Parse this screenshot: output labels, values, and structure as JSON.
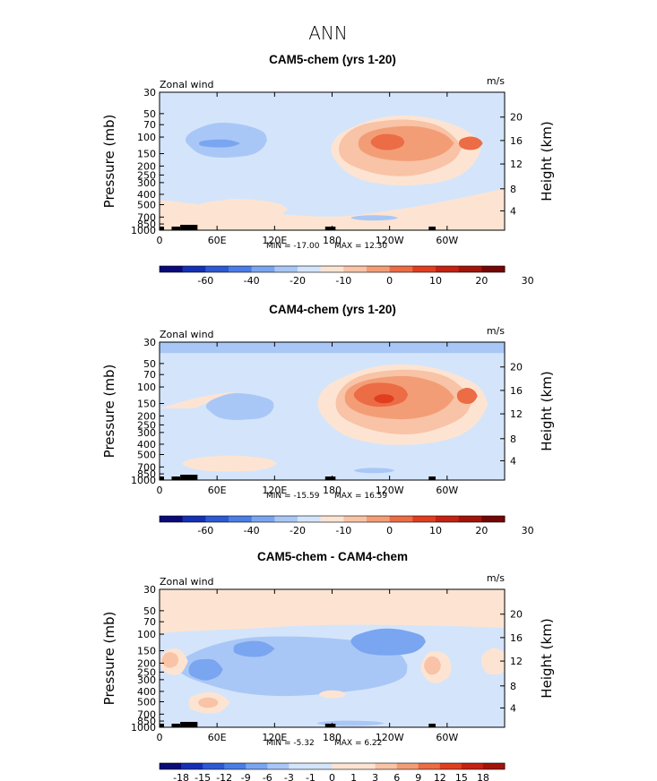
{
  "page_title": "ANN",
  "chart_data": [
    {
      "type": "heatmap",
      "title": "CAM5-chem (yrs 1-20)",
      "left_label": "Zonal wind",
      "units": "m/s",
      "ylabel": "Pressure (mb)",
      "ylabel_right": "Height (km)",
      "x_ticks": [
        "0",
        "60E",
        "120E",
        "180",
        "120W",
        "60W"
      ],
      "y_ticks": [
        "30",
        "50",
        "70",
        "100",
        "150",
        "200",
        "250",
        "300",
        "400",
        "500",
        "700",
        "850",
        "1000"
      ],
      "y_ticks_right": [
        "20",
        "16",
        "12",
        "8",
        "4"
      ],
      "min_label": "MIN = -17.00",
      "max_label": "MAX = 12.30",
      "min": -17.0,
      "max": 12.3,
      "colorbar_labels": [
        "-60",
        "-40",
        "-20",
        "-10",
        "0",
        "10",
        "20",
        "30"
      ]
    },
    {
      "type": "heatmap",
      "title": "CAM4-chem (yrs 1-20)",
      "left_label": "Zonal wind",
      "units": "m/s",
      "ylabel": "Pressure (mb)",
      "ylabel_right": "Height (km)",
      "x_ticks": [
        "0",
        "60E",
        "120E",
        "180",
        "120W",
        "60W"
      ],
      "y_ticks": [
        "30",
        "50",
        "70",
        "100",
        "150",
        "200",
        "250",
        "300",
        "400",
        "500",
        "700",
        "850",
        "1000"
      ],
      "y_ticks_right": [
        "20",
        "16",
        "12",
        "8",
        "4"
      ],
      "min_label": "MIN = -15.59",
      "max_label": "MAX = 16.59",
      "min": -15.59,
      "max": 16.59,
      "colorbar_labels": [
        "-60",
        "-40",
        "-20",
        "-10",
        "0",
        "10",
        "20",
        "30"
      ]
    },
    {
      "type": "heatmap",
      "title": "CAM5-chem - CAM4-chem",
      "left_label": "Zonal wind",
      "units": "m/s",
      "ylabel": "Pressure (mb)",
      "ylabel_right": "Height (km)",
      "x_ticks": [
        "0",
        "60E",
        "120E",
        "180",
        "120W",
        "60W"
      ],
      "y_ticks": [
        "30",
        "50",
        "70",
        "100",
        "150",
        "200",
        "250",
        "300",
        "400",
        "500",
        "700",
        "850",
        "1000"
      ],
      "y_ticks_right": [
        "20",
        "16",
        "12",
        "8",
        "4"
      ],
      "min_label": "MIN = -5.32",
      "max_label": "MAX = 6.22",
      "min": -5.32,
      "max": 6.22,
      "colorbar_labels": [
        "-18",
        "-15",
        "-12",
        "-9",
        "-6",
        "-3",
        "-1",
        "0",
        "1",
        "3",
        "6",
        "9",
        "12",
        "15",
        "18"
      ]
    }
  ],
  "colors": {
    "blue_darkest": "#0a0a78",
    "blue_dark": "#1530b4",
    "blue_strong": "#2d5ad2",
    "blue_medium": "#4a7de6",
    "blue_soft": "#7aa5f0",
    "blue_light": "#a9c7f6",
    "blue_pale": "#d4e5fb",
    "peach_pale": "#fde4d2",
    "orange_light": "#f8c3a6",
    "orange_soft": "#f39d76",
    "orange_medium": "#eb6c45",
    "red_orange": "#e03e1f",
    "red_strong": "#c42212",
    "red_dark": "#a21409",
    "red_darkest": "#740606"
  }
}
